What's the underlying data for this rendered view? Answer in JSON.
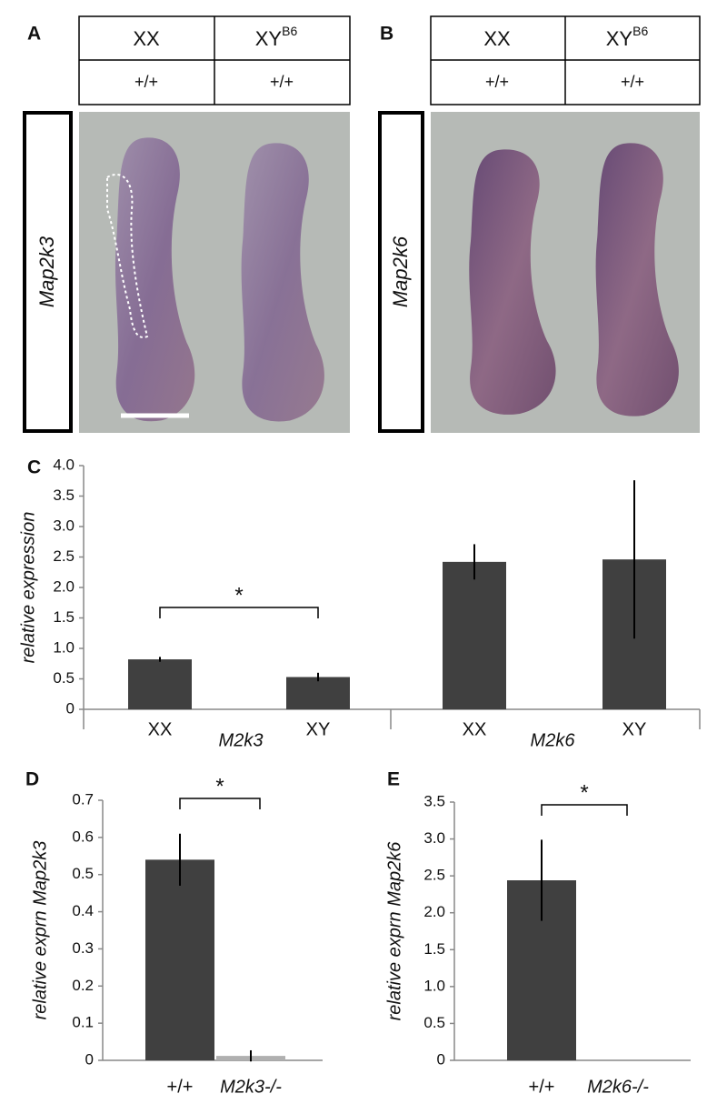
{
  "figure": {
    "panels": [
      {
        "label": "A",
        "gene": "Map2k3",
        "columns": [
          {
            "genotype": "XX",
            "allele": "+/+"
          },
          {
            "genotype": "XY",
            "superscript": "B6",
            "allele": "+/+"
          }
        ]
      },
      {
        "label": "B",
        "gene": "Map2k6",
        "columns": [
          {
            "genotype": "XX",
            "allele": "+/+"
          },
          {
            "genotype": "XY",
            "superscript": "B6",
            "allele": "+/+"
          }
        ]
      }
    ]
  },
  "chart_data": [
    {
      "type": "bar",
      "label": "C",
      "ylabel": "relative expression",
      "categories": [
        "XX",
        "XY",
        "XX",
        "XY"
      ],
      "group_labels": [
        "M2k3",
        "M2k6"
      ],
      "values": [
        0.82,
        0.53,
        2.42,
        2.46
      ],
      "errors": [
        0.04,
        0.07,
        0.29,
        1.3
      ],
      "color": "#404040",
      "significance": "*",
      "ylim": [
        0,
        4
      ],
      "yticks": [
        0,
        0.5,
        {
          "value": 1,
          "label": "1.0"
        },
        1.5,
        {
          "value": 2,
          "label": "2.0"
        },
        2.5,
        {
          "value": 3,
          "label": "3.0"
        },
        3.5,
        {
          "value": 4,
          "label": "4.0"
        }
      ]
    },
    {
      "type": "bar",
      "label": "D",
      "ylabel": "relative exprn Map2k3",
      "categories": [
        "+/+",
        "M2k3-/-"
      ],
      "values": [
        0.54,
        0.012
      ],
      "errors": [
        0.07,
        0.015
      ],
      "colors": [
        "#404040",
        "#b0b0b0"
      ],
      "significance": "*",
      "ylim": [
        0,
        0.7
      ],
      "yticks": [
        0,
        0.1,
        0.2,
        0.3,
        0.4,
        0.5,
        0.6,
        0.7
      ]
    },
    {
      "type": "bar",
      "label": "E",
      "ylabel": "relative exprn Map2k6",
      "categories": [
        "+/+",
        "M2k6-/-"
      ],
      "values": [
        2.44,
        0
      ],
      "errors": [
        0.55,
        0
      ],
      "colors": [
        "#404040",
        "#b0b0b0"
      ],
      "significance": "*",
      "ylim": [
        0,
        3.5
      ],
      "yticks": [
        0,
        0.5,
        {
          "value": 1,
          "label": "1.0"
        },
        1.5,
        {
          "value": 2,
          "label": "2.0"
        },
        2.5,
        {
          "value": 3,
          "label": "3.0"
        },
        3.5
      ]
    }
  ]
}
